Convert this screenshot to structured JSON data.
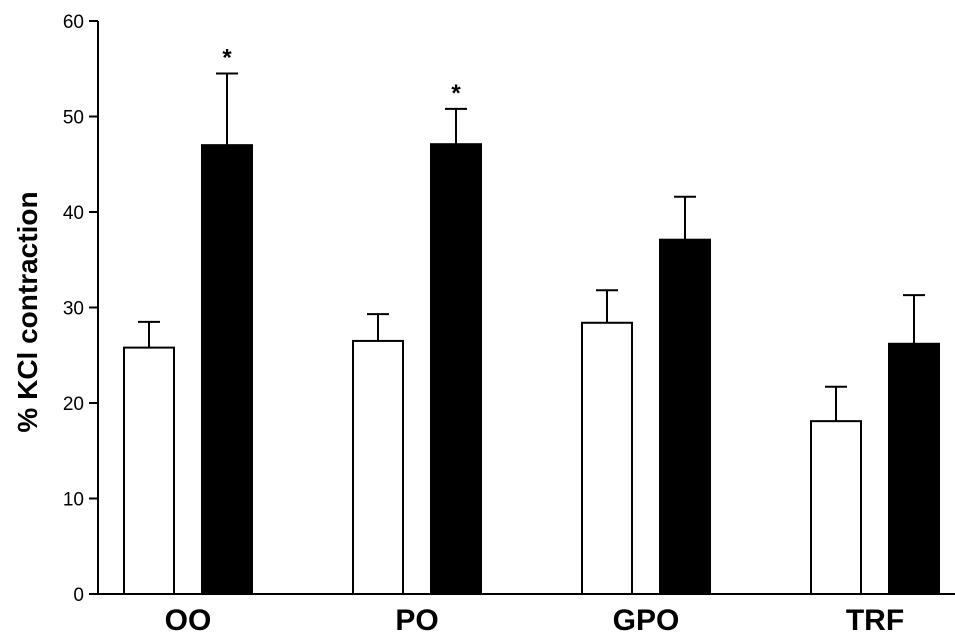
{
  "chart_data": {
    "type": "bar",
    "title": "",
    "xlabel": "",
    "ylabel": "% KCl contraction",
    "ylim": [
      0,
      60
    ],
    "yticks": [
      0,
      10,
      20,
      30,
      40,
      50,
      60
    ],
    "grid": false,
    "categories": [
      "OO",
      "PO",
      "GPO",
      "TRF"
    ],
    "series": [
      {
        "fill": "#ffffff",
        "values": [
          25.8,
          26.5,
          28.4,
          18.1
        ],
        "errors": [
          2.7,
          2.8,
          3.4,
          3.6
        ]
      },
      {
        "fill": "#000000",
        "values": [
          47.0,
          47.1,
          37.1,
          26.2
        ],
        "errors": [
          7.5,
          3.7,
          4.5,
          5.1
        ]
      }
    ],
    "annotations": [
      {
        "category": "OO",
        "series": 1,
        "text": "*"
      },
      {
        "category": "PO",
        "series": 1,
        "text": "*"
      }
    ]
  }
}
